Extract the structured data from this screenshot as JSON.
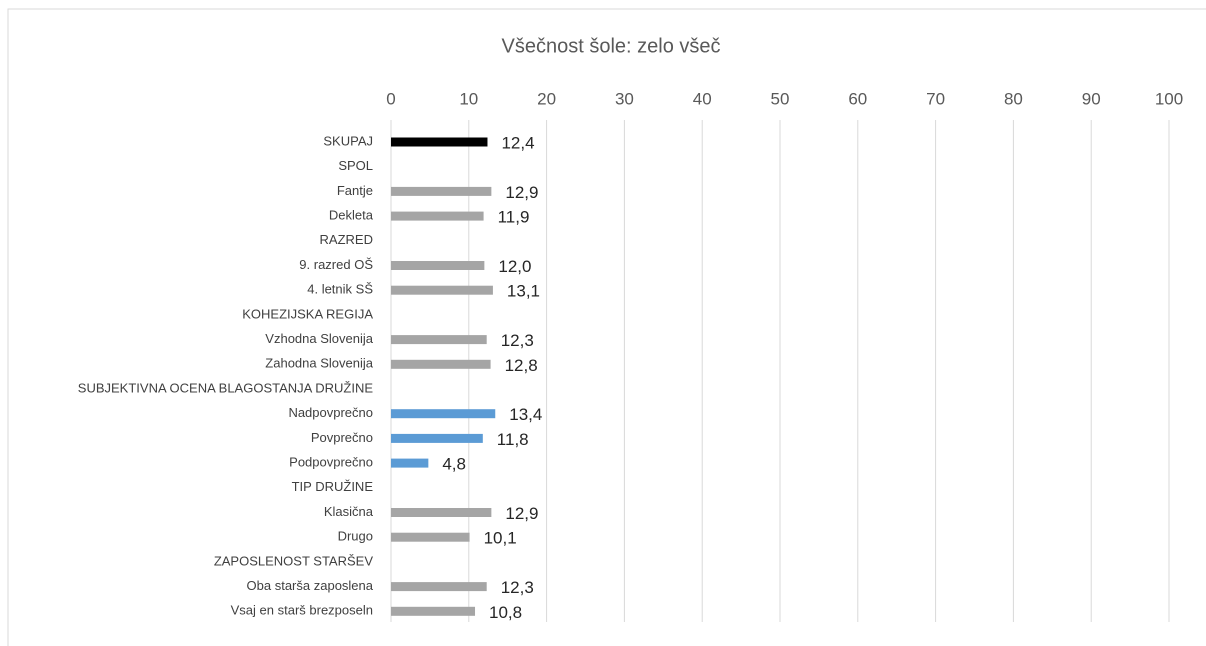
{
  "chart_data": {
    "type": "hbar",
    "title": "Všečnost šole: zelo všeč",
    "categories": [
      "SKUPAJ",
      "SPOL",
      "Fantje",
      "Dekleta",
      "RAZRED",
      "9. razred OŠ",
      "4. letnik SŠ",
      "KOHEZIJSKA REGIJA",
      "Vzhodna Slovenija",
      "Zahodna Slovenija",
      "SUBJEKTIVNA OCENA BLAGOSTANJA DRUŽINE",
      "Nadpovprečno",
      "Povprečno",
      "Podpovprečno",
      "TIP DRUŽINE",
      "Klasična",
      "Drugo",
      "ZAPOSLENOST STARŠEV",
      "Oba starša zaposlena",
      "Vsaj en starš brezposeln"
    ],
    "values": [
      12.4,
      null,
      12.9,
      11.9,
      null,
      12.0,
      13.1,
      null,
      12.3,
      12.8,
      null,
      13.4,
      11.8,
      4.8,
      null,
      12.9,
      10.1,
      null,
      12.3,
      10.8
    ],
    "value_labels": [
      "12,4",
      null,
      "12,9",
      "11,9",
      null,
      "12,0",
      "13,1",
      null,
      "12,3",
      "12,8",
      null,
      "13,4",
      "11,8",
      "4,8",
      null,
      "12,9",
      "10,1",
      null,
      "12,3",
      "10,8"
    ],
    "colors": [
      "#000000",
      null,
      "#a5a5a5",
      "#a5a5a5",
      null,
      "#a5a5a5",
      "#a5a5a5",
      null,
      "#a5a5a5",
      "#a5a5a5",
      null,
      "#5b9bd5",
      "#5b9bd5",
      "#5b9bd5",
      null,
      "#a5a5a5",
      "#a5a5a5",
      null,
      "#a5a5a5",
      "#a5a5a5"
    ],
    "xlim": [
      0,
      100
    ],
    "xticks": [
      0,
      10,
      20,
      30,
      40,
      50,
      60,
      70,
      80,
      90,
      100
    ],
    "grid": true
  }
}
